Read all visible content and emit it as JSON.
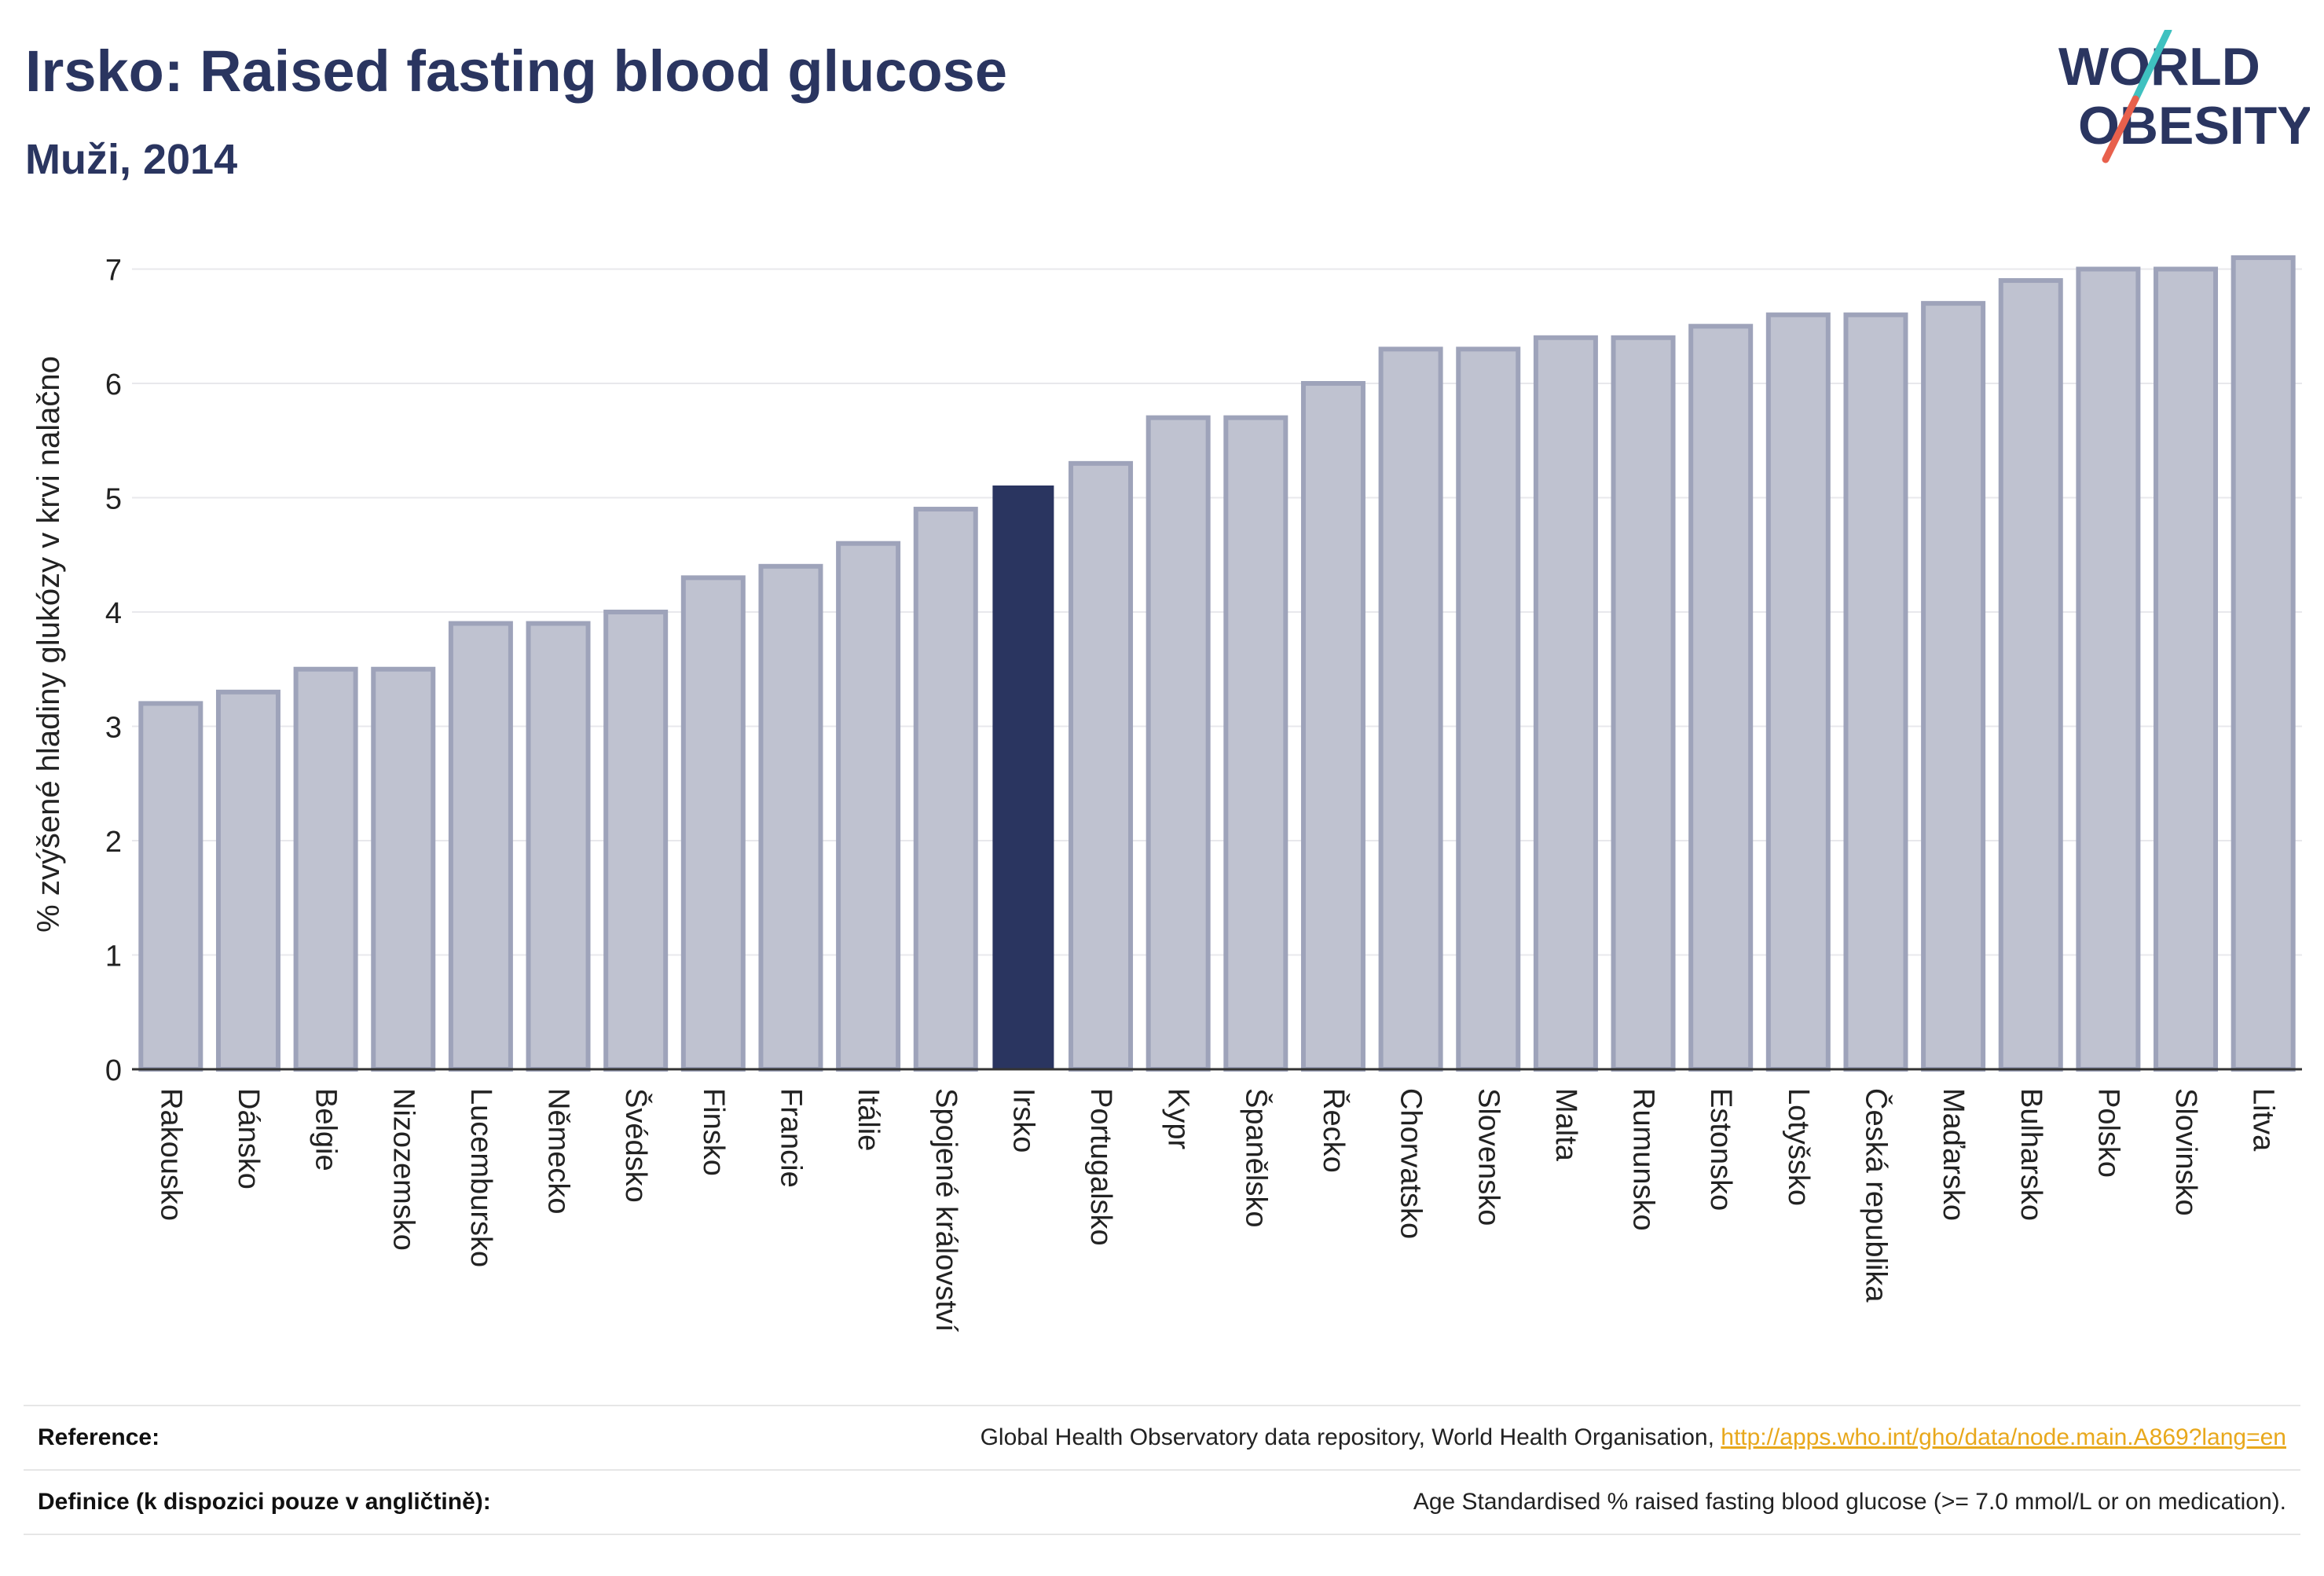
{
  "header": {
    "title": "Irsko: Raised fasting blood glucose",
    "subtitle": "Muži, 2014"
  },
  "logo": {
    "line1": "WORLD",
    "line2": "OBESITY"
  },
  "colors": {
    "bar": "#bfc2d0",
    "bar_stroke": "#9ea3ba",
    "highlight": "#2a3560",
    "grid": "#e8e8ec",
    "text": "#2a3560",
    "link": "#e8a81c",
    "logo_teal": "#3fc1c0",
    "logo_red": "#e8604c"
  },
  "chart_data": {
    "type": "bar",
    "ylabel": "% zvýšené hladiny glukózy v krvi nalačno",
    "xlabel": "",
    "ylim": [
      0,
      7.3
    ],
    "yticks": [
      0,
      1,
      2,
      3,
      4,
      5,
      6,
      7
    ],
    "grid": true,
    "highlight": "Irsko",
    "categories": [
      "Rakousko",
      "Dánsko",
      "Belgie",
      "Nizozemsko",
      "Lucembursko",
      "Německo",
      "Švédsko",
      "Finsko",
      "Francie",
      "Itálie",
      "Spojené království",
      "Irsko",
      "Portugalsko",
      "Kypr",
      "Španělsko",
      "Řecko",
      "Chorvatsko",
      "Slovensko",
      "Malta",
      "Rumunsko",
      "Estonsko",
      "Lotyšsko",
      "Česká republika",
      "Maďarsko",
      "Bulharsko",
      "Polsko",
      "Slovinsko",
      "Litva"
    ],
    "values": [
      3.2,
      3.3,
      3.5,
      3.5,
      3.9,
      3.9,
      4.0,
      4.3,
      4.4,
      4.6,
      4.9,
      5.1,
      5.3,
      5.7,
      5.7,
      6.0,
      6.3,
      6.3,
      6.4,
      6.4,
      6.5,
      6.6,
      6.6,
      6.7,
      6.9,
      7.0,
      7.0,
      7.1
    ]
  },
  "footer": {
    "reference_label": "Reference:",
    "reference_text": "Global Health Observatory data repository, World Health Organisation, ",
    "reference_link": "http://apps.who.int/gho/data/node.main.A869?lang=en",
    "definition_label": "Definice (k dispozici pouze v angličtině):",
    "definition_text": "Age Standardised % raised fasting blood glucose (>= 7.0 mmol/L or on medication)."
  }
}
